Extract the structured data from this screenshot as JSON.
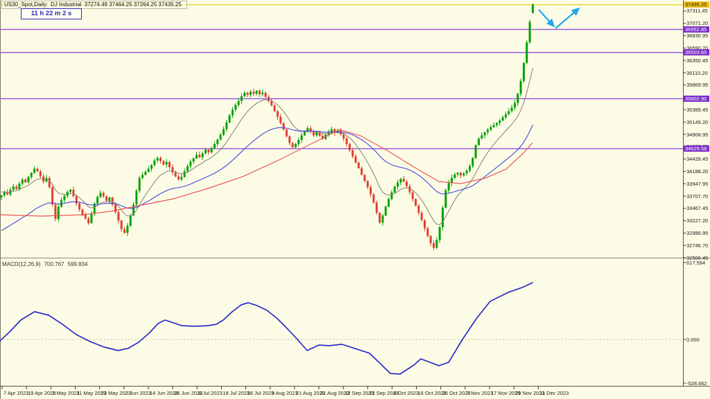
{
  "header": {
    "symbol": "US30_Spot,Daily:",
    "description": "DJ Industrial",
    "ohlc": "37274.49 37464.25 37264.25 37435.25",
    "countdown": "11 h 22 m 2 s"
  },
  "chart_data": {
    "type": "candlestick",
    "title": "US30_Spot Daily - DJ Industrial",
    "background": "#FCFCE6",
    "candle_up_color": "#00A000",
    "candle_down_color": "#DF3F2F",
    "price_axis_ticks": [
      "37311.45",
      "37071.20",
      "36830.95",
      "36590.70",
      "36350.45",
      "36110.20",
      "35869.95",
      "35629.70",
      "35389.45",
      "35149.20",
      "34908.95",
      "34668.70",
      "34428.45",
      "34188.20",
      "33947.95",
      "33707.70",
      "33467.45",
      "33227.20",
      "32986.95",
      "32746.70",
      "32506.45"
    ],
    "last_price": {
      "label": "37435.25",
      "value": 37435.25,
      "line_color": "#E3C800",
      "label_bg": "#EFC020",
      "label_fg": "#1a1a00"
    },
    "last_ohlc": [
      37274.49,
      37464.25,
      37264.25,
      37435.25
    ],
    "levels": [
      {
        "label": "36952.85",
        "value": 36952.85
      },
      {
        "label": "36503.65",
        "value": 36503.65
      },
      {
        "label": "35602.90",
        "value": 35602.9
      },
      {
        "label": "34629.58",
        "value": 34629.58
      }
    ],
    "level_line_color": "#9B59E0",
    "level_label_bg": "#7D2FC9",
    "level_label_fg": "#FFFFFF",
    "time_axis_labels": [
      "7 Apr 2023",
      "19 Apr 2023",
      "1 May 2023",
      "11 May 2023",
      "23 May 2023",
      "2 Jun 2023",
      "14 Jun 2023",
      "26 Jun 2023",
      "6 Jul 2023",
      "18 Jul 2023",
      "28 Jul 2023",
      "9 Aug 2023",
      "21 Aug 2023",
      "31 Aug 2023",
      "12 Sep 2023",
      "22 Sep 2023",
      "4 Oct 2023",
      "16 Oct 2023",
      "26 Oct 2023",
      "7 Nov 2023",
      "17 Nov 2023",
      "29 Nov 2023",
      "11 Dec 2023"
    ],
    "closes": [
      33720,
      33790,
      33740,
      33830,
      33890,
      33845,
      33950,
      34030,
      33975,
      34080,
      34160,
      34240,
      34190,
      34090,
      33990,
      34060,
      33880,
      33540,
      33260,
      33500,
      33630,
      33710,
      33790,
      33830,
      33705,
      33560,
      33445,
      33350,
      33270,
      33180,
      33360,
      33560,
      33690,
      33770,
      33700,
      33615,
      33680,
      33540,
      33395,
      33230,
      33060,
      32990,
      33130,
      33330,
      33540,
      33810,
      34060,
      34120,
      34180,
      34240,
      34310,
      34400,
      34450,
      34390,
      34320,
      34370,
      34270,
      34170,
      34090,
      34030,
      34080,
      34190,
      34290,
      34380,
      34440,
      34510,
      34460,
      34540,
      34610,
      34560,
      34640,
      34720,
      34810,
      34900,
      35010,
      35140,
      35280,
      35390,
      35480,
      35560,
      35650,
      35720,
      35680,
      35740,
      35700,
      35760,
      35690,
      35720,
      35640,
      35560,
      35470,
      35360,
      35250,
      35130,
      35000,
      34870,
      34740,
      34660,
      34720,
      34800,
      34890,
      34960,
      35030,
      34960,
      34890,
      34950,
      34880,
      34820,
      34900,
      34960,
      35010,
      34940,
      34990,
      34910,
      34830,
      34720,
      34600,
      34480,
      34360,
      34250,
      34120,
      34000,
      33880,
      33740,
      33580,
      33380,
      33190,
      33330,
      33500,
      33650,
      33780,
      33890,
      33970,
      34040,
      33990,
      33900,
      33780,
      33650,
      33520,
      33380,
      33240,
      33080,
      32930,
      32790,
      32700,
      32850,
      33100,
      33480,
      33820,
      33960,
      34060,
      34130,
      34160,
      34110,
      34150,
      34200,
      34290,
      34450,
      34700,
      34830,
      34890,
      34950,
      35000,
      35050,
      35090,
      35130,
      35180,
      35240,
      35300,
      35360,
      35430,
      35520,
      35700,
      35950,
      36300,
      36700,
      37100,
      37435.25
    ],
    "moving_averages": [
      {
        "name": "fast-ma",
        "period": 6,
        "seed": 33800,
        "color": "#8A8A78"
      },
      {
        "name": "medium-ma",
        "period": 20,
        "seed": 32994,
        "color": "#4545DD"
      }
    ],
    "slow_ma": {
      "name": "slow-ma",
      "color": "#ED5555",
      "points": [
        [
          0,
          33343
        ],
        [
          60,
          33316
        ],
        [
          120,
          33343
        ],
        [
          160,
          33410
        ],
        [
          200,
          33518
        ],
        [
          250,
          33653
        ],
        [
          300,
          33856
        ],
        [
          350,
          34085
        ],
        [
          400,
          34395
        ],
        [
          450,
          34733
        ],
        [
          490,
          35003
        ],
        [
          520,
          34881
        ],
        [
          560,
          34584
        ],
        [
          600,
          34247
        ],
        [
          633,
          33990
        ],
        [
          665,
          33950
        ],
        [
          700,
          34058
        ],
        [
          730,
          34233
        ],
        [
          755,
          34544
        ],
        [
          768,
          34746
        ]
      ]
    },
    "macd": {
      "label": "MACD(12,26,9)",
      "value_main": "700.767",
      "value_signal": "599.834",
      "axis_max": "617.594",
      "axis_zero": "0.000",
      "axis_min": "-528.662",
      "line_color": "#2B2BC8",
      "points": [
        [
          0,
          -11
        ],
        [
          15,
          67
        ],
        [
          30,
          156
        ],
        [
          50,
          223
        ],
        [
          70,
          195
        ],
        [
          90,
          122
        ],
        [
          110,
          39
        ],
        [
          130,
          -17
        ],
        [
          150,
          -61
        ],
        [
          170,
          -89
        ],
        [
          185,
          -72
        ],
        [
          200,
          -22
        ],
        [
          215,
          50
        ],
        [
          228,
          128
        ],
        [
          238,
          156
        ],
        [
          250,
          134
        ],
        [
          262,
          111
        ],
        [
          280,
          106
        ],
        [
          300,
          111
        ],
        [
          312,
          122
        ],
        [
          322,
          156
        ],
        [
          335,
          223
        ],
        [
          348,
          278
        ],
        [
          358,
          295
        ],
        [
          370,
          273
        ],
        [
          385,
          234
        ],
        [
          400,
          167
        ],
        [
          415,
          83
        ],
        [
          428,
          6
        ],
        [
          443,
          -89
        ],
        [
          460,
          -45
        ],
        [
          475,
          -50
        ],
        [
          493,
          -39
        ],
        [
          533,
          -111
        ],
        [
          563,
          -273
        ],
        [
          577,
          -278
        ],
        [
          597,
          -206
        ],
        [
          607,
          -156
        ],
        [
          633,
          -211
        ],
        [
          647,
          -184
        ],
        [
          667,
          0
        ],
        [
          687,
          167
        ],
        [
          707,
          306
        ],
        [
          713,
          323
        ],
        [
          733,
          378
        ],
        [
          753,
          417
        ],
        [
          768,
          456
        ]
      ]
    },
    "annotation_arrows": {
      "color": "#1FA8F0",
      "segments": [
        [
          777,
          14,
          798,
          37
        ],
        [
          801,
          41,
          834,
          13
        ]
      ]
    }
  }
}
